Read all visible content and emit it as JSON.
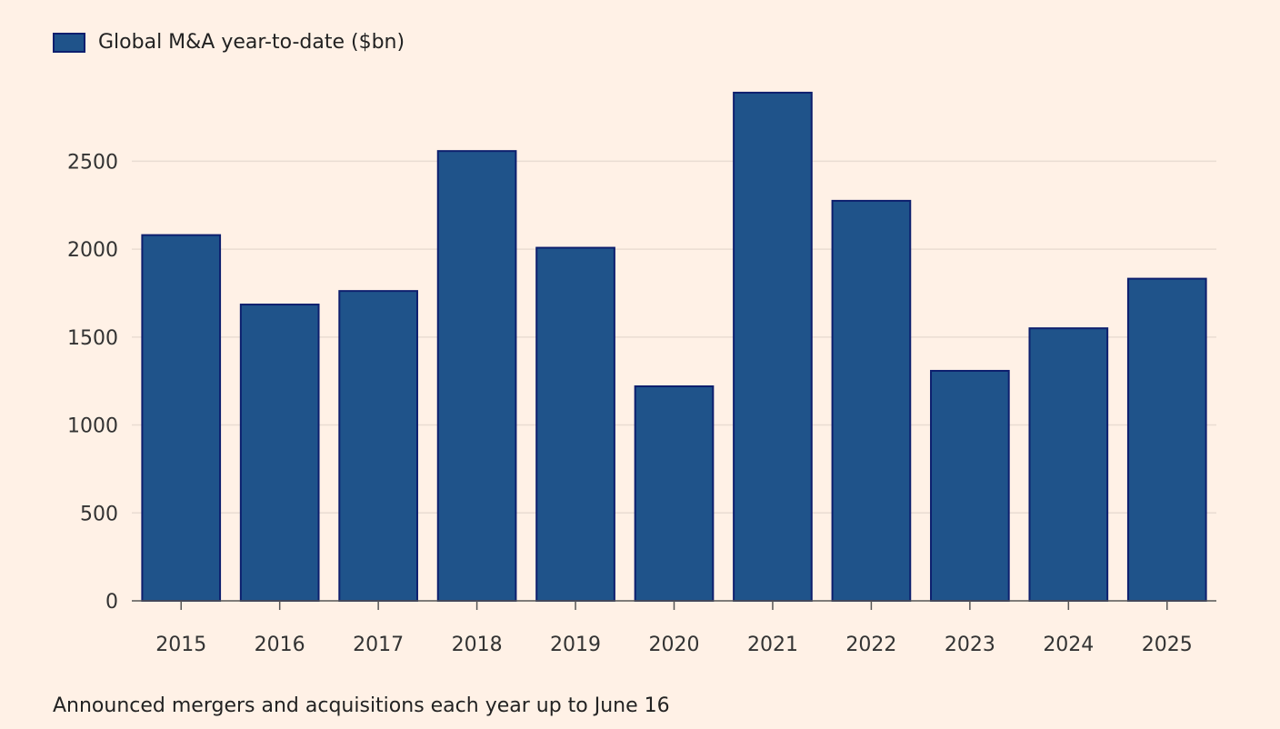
{
  "colors": {
    "background": "#fff1e6",
    "bar": "#1f538a",
    "bar_border": "#0d1f6e",
    "grid": "#e9dcd2",
    "axis": "#555555"
  },
  "legend": {
    "label": "Global M&A year-to-date ($bn)"
  },
  "footnote": "Announced mergers and acquisitions each year up to June 16",
  "chart_data": {
    "type": "bar",
    "title": "",
    "xlabel": "",
    "ylabel": "",
    "categories": [
      "2015",
      "2016",
      "2017",
      "2018",
      "2019",
      "2020",
      "2021",
      "2022",
      "2023",
      "2024",
      "2025"
    ],
    "series": [
      {
        "name": "Global M&A year-to-date ($bn)",
        "values": [
          2080,
          1685,
          1762,
          2558,
          2008,
          1220,
          2890,
          2275,
          1308,
          1550,
          1832
        ]
      }
    ],
    "ylim": [
      0,
      2900
    ],
    "yticks": [
      0,
      500,
      1000,
      1500,
      2000,
      2500
    ],
    "grid": true,
    "legend_position": "top-left"
  }
}
